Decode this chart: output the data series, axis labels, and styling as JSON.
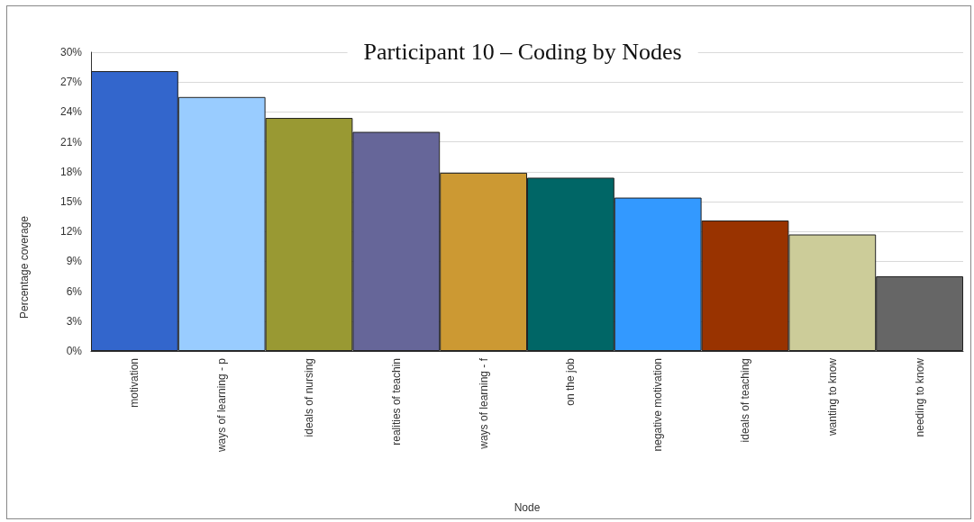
{
  "chart_data": {
    "type": "bar",
    "title": "Participant 10 – Coding by Nodes",
    "xlabel": "Node",
    "ylabel": "Percentage coverage",
    "categories": [
      "motivation",
      "ways of learning - p",
      "ideals of nursing",
      "realities of teachin",
      "ways of learning - f",
      "on the job",
      "negative motivation",
      "ideals of teaching",
      "wanting to know",
      "needing to know"
    ],
    "values": [
      28.1,
      25.5,
      23.4,
      22.0,
      17.9,
      17.4,
      15.4,
      13.1,
      11.7,
      7.5
    ],
    "colors": [
      "#3366cc",
      "#99ccff",
      "#999933",
      "#666699",
      "#cc9933",
      "#006666",
      "#3399ff",
      "#993300",
      "#cccc99",
      "#666666"
    ],
    "ylim": [
      0,
      30
    ],
    "yticks": [
      {
        "value": 0,
        "label": "0%"
      },
      {
        "value": 3,
        "label": "3%"
      },
      {
        "value": 6,
        "label": "6%"
      },
      {
        "value": 9,
        "label": "9%"
      },
      {
        "value": 12,
        "label": "12%"
      },
      {
        "value": 15,
        "label": "15%"
      },
      {
        "value": 18,
        "label": "18%"
      },
      {
        "value": 21,
        "label": "21%"
      },
      {
        "value": 24,
        "label": "24%"
      },
      {
        "value": 27,
        "label": "27%"
      },
      {
        "value": 30,
        "label": "30%"
      }
    ],
    "grid": "y"
  }
}
